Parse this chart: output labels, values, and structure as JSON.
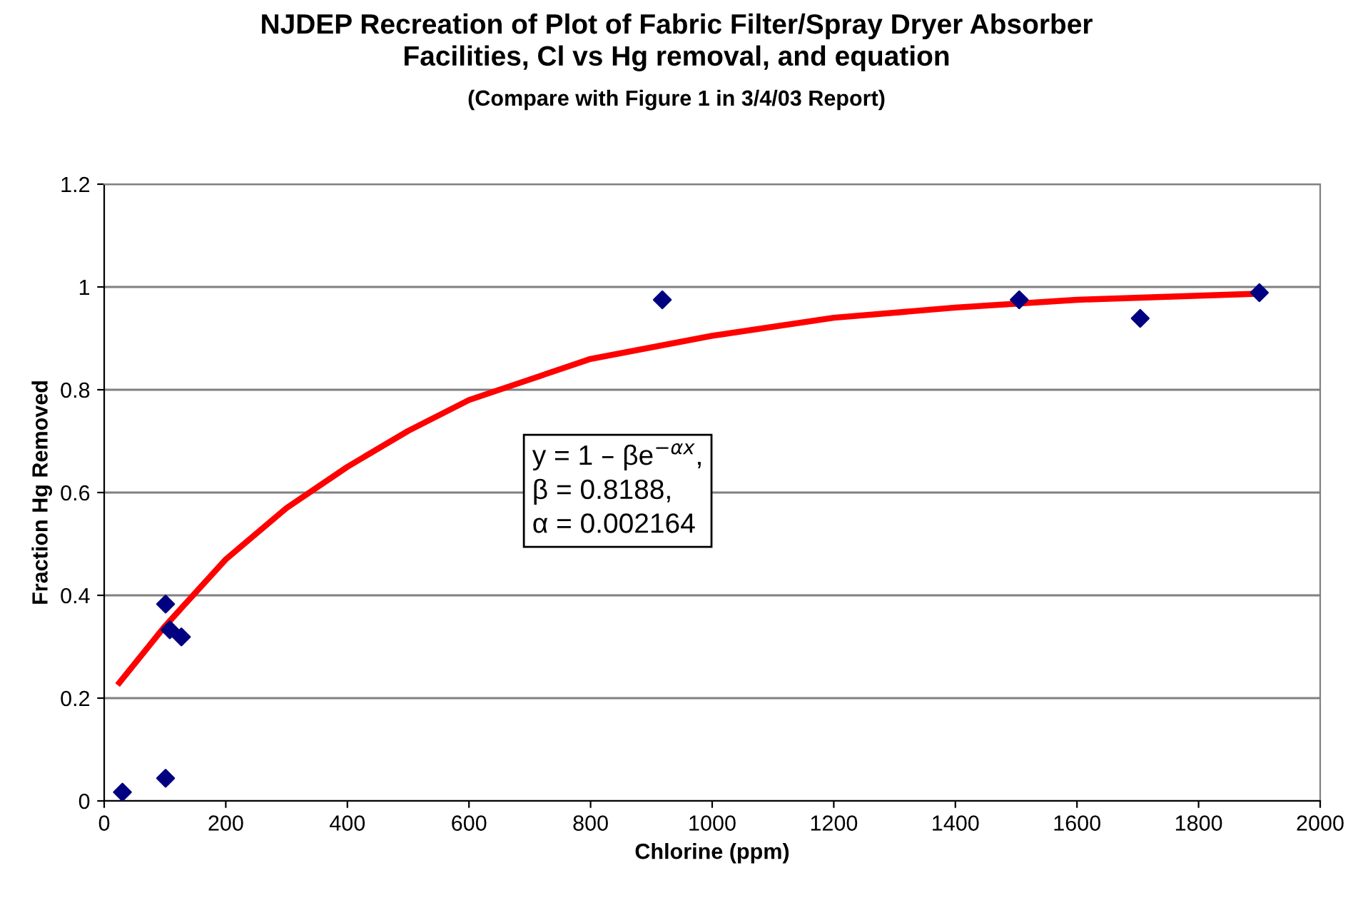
{
  "chart_data": {
    "type": "scatter",
    "title": "NJDEP Recreation of Plot of Fabric Filter/Spray Dryer Absorber\nFacilities, Cl vs Hg removal, and equation",
    "subtitle": "(Compare with Figure 1 in 3/4/03 Report)",
    "xlabel": "Chlorine (ppm)",
    "ylabel": "Fraction Hg Removed",
    "series": [
      {
        "color": "#000080",
        "marker": "diamond",
        "x": [
          30,
          101,
          101,
          108,
          127,
          918,
          1505,
          1704,
          1900
        ],
        "values": [
          0.017,
          0.044,
          0.383,
          0.333,
          0.319,
          0.975,
          0.975,
          0.939,
          0.989
        ]
      },
      {
        "type": "line",
        "color": "#ff0000",
        "marker": "none",
        "line_style": "solid",
        "x": [
          25,
          100,
          200,
          300,
          400,
          500,
          600,
          700,
          800,
          1000,
          1200,
          1400,
          1600,
          1800,
          1900
        ],
        "values": [
          0.23,
          0.34,
          0.47,
          0.57,
          0.65,
          0.72,
          0.78,
          0.82,
          0.86,
          0.905,
          0.94,
          0.96,
          0.975,
          0.983,
          0.987
        ]
      }
    ],
    "annotations": [
      "y = 1 – βe$^{−αx}$,\nβ = 0.8188,\nα = 0.002164"
    ],
    "xlim": [
      0,
      2000
    ],
    "xticks": [
      0,
      200,
      400,
      600,
      800,
      1000,
      1200,
      1400,
      1600,
      1800,
      2000
    ],
    "ylim": [
      0,
      1.2
    ],
    "yticks": [
      0,
      0.2,
      0.4,
      0.6,
      0.8,
      1,
      1.2
    ],
    "grid": "y",
    "legend": false
  }
}
